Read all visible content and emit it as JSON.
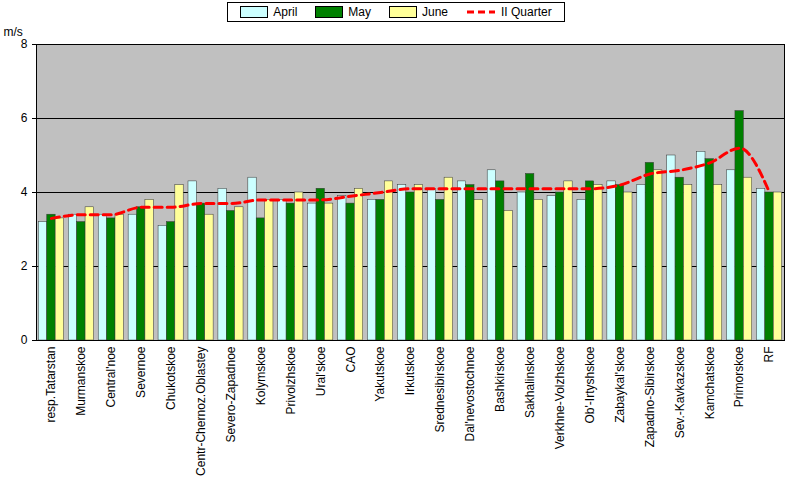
{
  "chart_data": {
    "type": "bar",
    "y_label": "m/s",
    "categories": [
      "resp.Tatarstan",
      "Murmanskoe",
      "Central'noe",
      "Severnoe",
      "Chukotskoe",
      "Centr-Chernoz.Oblastey",
      "Severo-Zapadnoe",
      "Kolymskoe",
      "Privolzhskoe",
      "Ural'skoe",
      "CAO",
      "Yakutskoe",
      "Irkutskoe",
      "Srednesibirskoe",
      "Dal'nevostochnoe",
      "Bashkirskoe",
      "Sakhalinskoe",
      "Verkhne-Volzhskoe",
      "Ob'-Irtyshskoe",
      "Zabaykal'skoe",
      "Zapadno-Sibirskoe",
      "Sev.-Kavkazskoe",
      "Kamchatskoe",
      "Primorskoe",
      "RF"
    ],
    "series": [
      {
        "name": "April",
        "type": "bar",
        "color": "#ccffff",
        "values": [
          3.2,
          3.4,
          3.4,
          3.4,
          3.1,
          4.3,
          4.1,
          4.4,
          3.8,
          3.7,
          3.9,
          3.8,
          4.2,
          4.1,
          4.3,
          4.6,
          4.0,
          3.9,
          3.8,
          4.3,
          4.2,
          5.0,
          5.1,
          4.6,
          4.1
        ]
      },
      {
        "name": "May",
        "type": "bar",
        "color": "#008000",
        "values": [
          3.4,
          3.2,
          3.3,
          3.6,
          3.2,
          3.7,
          3.5,
          3.3,
          3.7,
          4.1,
          3.7,
          3.8,
          4.0,
          3.8,
          4.2,
          4.3,
          4.5,
          4.0,
          4.3,
          4.2,
          4.8,
          4.4,
          4.9,
          6.2,
          4.0
        ]
      },
      {
        "name": "June",
        "type": "bar",
        "color": "#ffff99",
        "values": [
          3.3,
          3.6,
          3.4,
          3.8,
          4.2,
          3.4,
          3.6,
          3.8,
          4.0,
          3.7,
          4.1,
          4.3,
          4.2,
          4.4,
          3.8,
          3.5,
          3.8,
          4.3,
          4.2,
          4.0,
          4.6,
          4.2,
          4.2,
          4.4,
          4.0
        ]
      },
      {
        "name": "II Quarter",
        "type": "line",
        "color": "#ff0000",
        "line_style": "dashed",
        "values": [
          3.3,
          3.4,
          3.4,
          3.6,
          3.6,
          3.7,
          3.7,
          3.8,
          3.8,
          3.8,
          3.9,
          4.0,
          4.1,
          4.1,
          4.1,
          4.1,
          4.1,
          4.1,
          4.1,
          4.2,
          4.5,
          4.6,
          4.8,
          5.2,
          4.0
        ]
      }
    ],
    "ylim": [
      0,
      8
    ],
    "yticks": [
      0,
      2,
      4,
      6,
      8
    ],
    "grid": true,
    "legend": "top"
  }
}
